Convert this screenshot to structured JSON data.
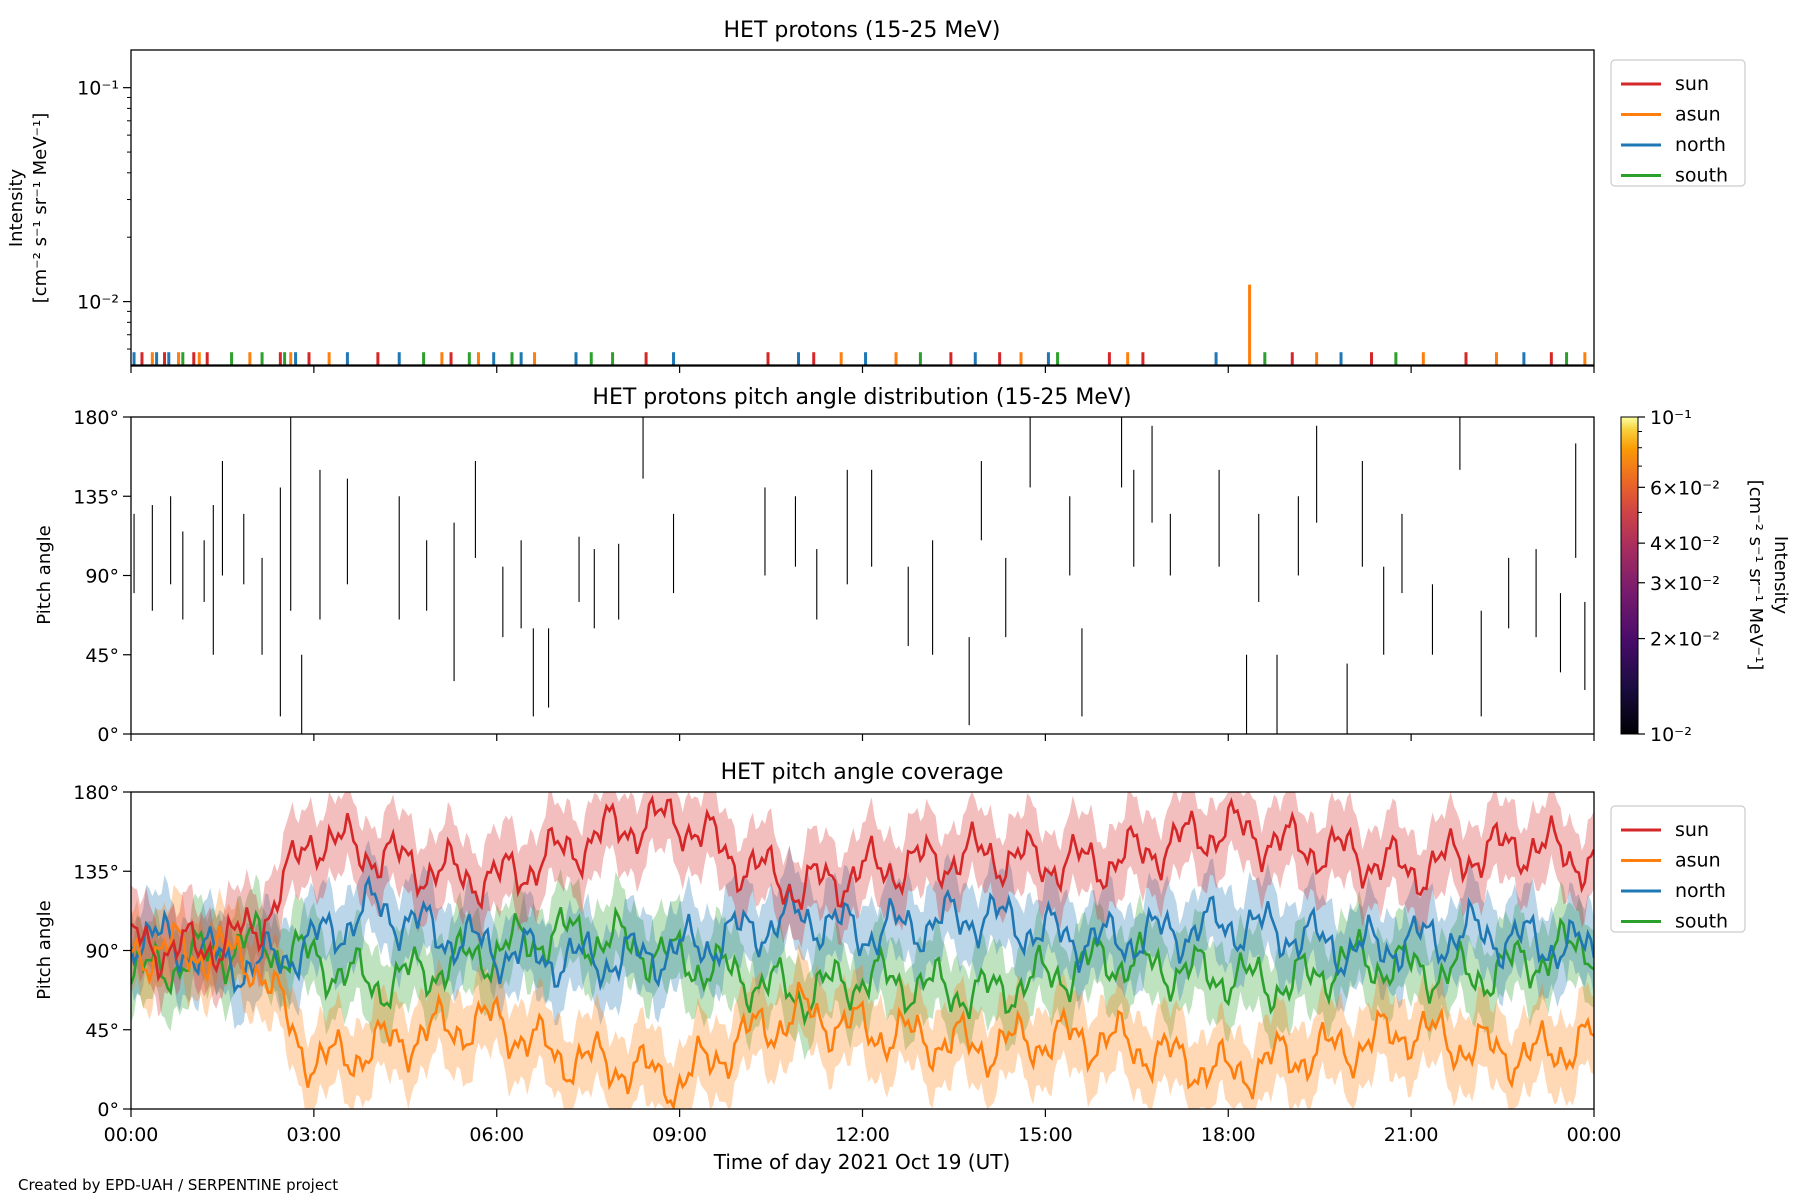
{
  "footer": "Created by EPD-UAH / SERPENTINE project",
  "colors": {
    "sun": "#d62728",
    "asun": "#ff7f0e",
    "north": "#1f77b4",
    "south": "#2ca02c"
  },
  "chart_data": [
    {
      "type": "bar",
      "title": "HET protons (15-25 MeV)",
      "ylabel_line1": "Intensity",
      "ylabel_line2": "[cm⁻² s⁻¹ sr⁻¹ MeV⁻¹]",
      "yscale": "log",
      "ylim": [
        0.005,
        0.15
      ],
      "ytick_labels": [
        "10⁻¹",
        "10⁻²"
      ],
      "legend": [
        "sun",
        "asun",
        "north",
        "south"
      ],
      "legend_position": "outside right, top",
      "spikes": [
        {
          "t": 0.05,
          "series": "north",
          "v": 0.0058
        },
        {
          "t": 0.18,
          "series": "sun",
          "v": 0.0058
        },
        {
          "t": 0.35,
          "series": "asun",
          "v": 0.0058
        },
        {
          "t": 0.42,
          "series": "north",
          "v": 0.0058
        },
        {
          "t": 0.55,
          "series": "sun",
          "v": 0.0058
        },
        {
          "t": 0.62,
          "series": "north",
          "v": 0.0058
        },
        {
          "t": 0.78,
          "series": "asun",
          "v": 0.0058
        },
        {
          "t": 0.85,
          "series": "south",
          "v": 0.0058
        },
        {
          "t": 1.03,
          "series": "sun",
          "v": 0.0058
        },
        {
          "t": 1.12,
          "series": "asun",
          "v": 0.0058
        },
        {
          "t": 1.25,
          "series": "sun",
          "v": 0.0058
        },
        {
          "t": 1.65,
          "series": "south",
          "v": 0.0058
        },
        {
          "t": 1.95,
          "series": "asun",
          "v": 0.0058
        },
        {
          "t": 2.15,
          "series": "south",
          "v": 0.0058
        },
        {
          "t": 2.45,
          "series": "sun",
          "v": 0.0058
        },
        {
          "t": 2.52,
          "series": "south",
          "v": 0.0058
        },
        {
          "t": 2.62,
          "series": "asun",
          "v": 0.0058
        },
        {
          "t": 2.7,
          "series": "north",
          "v": 0.0058
        },
        {
          "t": 2.92,
          "series": "sun",
          "v": 0.0058
        },
        {
          "t": 3.25,
          "series": "asun",
          "v": 0.0058
        },
        {
          "t": 3.55,
          "series": "north",
          "v": 0.0058
        },
        {
          "t": 4.05,
          "series": "sun",
          "v": 0.0058
        },
        {
          "t": 4.4,
          "series": "north",
          "v": 0.0058
        },
        {
          "t": 4.8,
          "series": "south",
          "v": 0.0058
        },
        {
          "t": 5.1,
          "series": "asun",
          "v": 0.0058
        },
        {
          "t": 5.25,
          "series": "sun",
          "v": 0.0058
        },
        {
          "t": 5.55,
          "series": "south",
          "v": 0.0058
        },
        {
          "t": 5.7,
          "series": "asun",
          "v": 0.0058
        },
        {
          "t": 5.95,
          "series": "north",
          "v": 0.0058
        },
        {
          "t": 6.25,
          "series": "south",
          "v": 0.0058
        },
        {
          "t": 6.4,
          "series": "north",
          "v": 0.0058
        },
        {
          "t": 6.62,
          "series": "asun",
          "v": 0.0058
        },
        {
          "t": 7.3,
          "series": "north",
          "v": 0.0058
        },
        {
          "t": 7.55,
          "series": "south",
          "v": 0.0058
        },
        {
          "t": 7.9,
          "series": "south",
          "v": 0.0058
        },
        {
          "t": 8.45,
          "series": "sun",
          "v": 0.0058
        },
        {
          "t": 8.9,
          "series": "north",
          "v": 0.0058
        },
        {
          "t": 10.45,
          "series": "sun",
          "v": 0.0058
        },
        {
          "t": 10.95,
          "series": "north",
          "v": 0.0058
        },
        {
          "t": 11.2,
          "series": "sun",
          "v": 0.0058
        },
        {
          "t": 11.65,
          "series": "asun",
          "v": 0.0058
        },
        {
          "t": 12.05,
          "series": "north",
          "v": 0.0058
        },
        {
          "t": 12.55,
          "series": "asun",
          "v": 0.0058
        },
        {
          "t": 12.95,
          "series": "south",
          "v": 0.0058
        },
        {
          "t": 13.45,
          "series": "sun",
          "v": 0.0058
        },
        {
          "t": 13.85,
          "series": "north",
          "v": 0.0058
        },
        {
          "t": 14.25,
          "series": "sun",
          "v": 0.0058
        },
        {
          "t": 14.6,
          "series": "asun",
          "v": 0.0058
        },
        {
          "t": 15.05,
          "series": "north",
          "v": 0.0058
        },
        {
          "t": 15.2,
          "series": "south",
          "v": 0.0058
        },
        {
          "t": 16.05,
          "series": "sun",
          "v": 0.0058
        },
        {
          "t": 16.35,
          "series": "asun",
          "v": 0.0058
        },
        {
          "t": 16.6,
          "series": "sun",
          "v": 0.0058
        },
        {
          "t": 17.8,
          "series": "north",
          "v": 0.0058
        },
        {
          "t": 18.35,
          "series": "asun",
          "v": 0.012
        },
        {
          "t": 18.6,
          "series": "south",
          "v": 0.0058
        },
        {
          "t": 19.05,
          "series": "sun",
          "v": 0.0058
        },
        {
          "t": 19.45,
          "series": "asun",
          "v": 0.0058
        },
        {
          "t": 19.85,
          "series": "north",
          "v": 0.0058
        },
        {
          "t": 20.35,
          "series": "sun",
          "v": 0.0058
        },
        {
          "t": 20.75,
          "series": "south",
          "v": 0.0058
        },
        {
          "t": 21.2,
          "series": "asun",
          "v": 0.0058
        },
        {
          "t": 21.9,
          "series": "sun",
          "v": 0.0058
        },
        {
          "t": 22.4,
          "series": "asun",
          "v": 0.0058
        },
        {
          "t": 22.85,
          "series": "north",
          "v": 0.0058
        },
        {
          "t": 23.3,
          "series": "sun",
          "v": 0.0058
        },
        {
          "t": 23.55,
          "series": "south",
          "v": 0.0058
        },
        {
          "t": 23.85,
          "series": "asun",
          "v": 0.0058
        }
      ]
    },
    {
      "type": "heatmap",
      "title": "HET protons pitch angle distribution (15-25 MeV)",
      "ylabel": "Pitch angle",
      "ylim": [
        0,
        180
      ],
      "ytick_labels": [
        "0°",
        "45°",
        "90°",
        "135°",
        "180°"
      ],
      "colorbar": {
        "scale": "log",
        "range": [
          0.01,
          0.1
        ],
        "tick_labels": [
          "10⁻²",
          "2×10⁻²",
          "3×10⁻²",
          "4×10⁻²",
          "6×10⁻²",
          "10⁻¹"
        ],
        "label_line1": "Intensity",
        "label_line2": "[cm⁻² s⁻¹ sr⁻¹ MeV⁻¹]"
      },
      "segments": [
        {
          "t": 0.05,
          "lo": 80,
          "hi": 125
        },
        {
          "t": 0.35,
          "lo": 70,
          "hi": 130
        },
        {
          "t": 0.65,
          "lo": 85,
          "hi": 135
        },
        {
          "t": 0.85,
          "lo": 65,
          "hi": 115
        },
        {
          "t": 1.2,
          "lo": 75,
          "hi": 110
        },
        {
          "t": 1.35,
          "lo": 45,
          "hi": 130
        },
        {
          "t": 1.5,
          "lo": 90,
          "hi": 155
        },
        {
          "t": 1.85,
          "lo": 85,
          "hi": 125
        },
        {
          "t": 2.15,
          "lo": 45,
          "hi": 100
        },
        {
          "t": 2.45,
          "lo": 10,
          "hi": 140
        },
        {
          "t": 2.62,
          "lo": 70,
          "hi": 180
        },
        {
          "t": 2.8,
          "lo": 0,
          "hi": 45
        },
        {
          "t": 3.1,
          "lo": 65,
          "hi": 150
        },
        {
          "t": 3.55,
          "lo": 85,
          "hi": 145
        },
        {
          "t": 4.4,
          "lo": 65,
          "hi": 135
        },
        {
          "t": 4.85,
          "lo": 70,
          "hi": 110
        },
        {
          "t": 5.3,
          "lo": 30,
          "hi": 120
        },
        {
          "t": 5.65,
          "lo": 100,
          "hi": 155
        },
        {
          "t": 6.1,
          "lo": 55,
          "hi": 95
        },
        {
          "t": 6.4,
          "lo": 60,
          "hi": 110
        },
        {
          "t": 6.6,
          "lo": 10,
          "hi": 60
        },
        {
          "t": 6.85,
          "lo": 15,
          "hi": 60
        },
        {
          "t": 7.35,
          "lo": 75,
          "hi": 112
        },
        {
          "t": 7.6,
          "lo": 60,
          "hi": 105
        },
        {
          "t": 8.0,
          "lo": 65,
          "hi": 108
        },
        {
          "t": 8.4,
          "lo": 145,
          "hi": 180
        },
        {
          "t": 8.9,
          "lo": 80,
          "hi": 125
        },
        {
          "t": 10.4,
          "lo": 90,
          "hi": 140
        },
        {
          "t": 10.9,
          "lo": 95,
          "hi": 135
        },
        {
          "t": 11.25,
          "lo": 65,
          "hi": 105
        },
        {
          "t": 11.75,
          "lo": 85,
          "hi": 150
        },
        {
          "t": 12.15,
          "lo": 95,
          "hi": 150
        },
        {
          "t": 12.75,
          "lo": 50,
          "hi": 95
        },
        {
          "t": 13.15,
          "lo": 45,
          "hi": 110
        },
        {
          "t": 13.75,
          "lo": 5,
          "hi": 55
        },
        {
          "t": 13.95,
          "lo": 110,
          "hi": 155
        },
        {
          "t": 14.35,
          "lo": 55,
          "hi": 100
        },
        {
          "t": 14.75,
          "lo": 140,
          "hi": 180
        },
        {
          "t": 15.4,
          "lo": 90,
          "hi": 135
        },
        {
          "t": 15.6,
          "lo": 10,
          "hi": 60
        },
        {
          "t": 16.25,
          "lo": 140,
          "hi": 180
        },
        {
          "t": 16.45,
          "lo": 95,
          "hi": 150
        },
        {
          "t": 16.75,
          "lo": 120,
          "hi": 175
        },
        {
          "t": 17.05,
          "lo": 90,
          "hi": 125
        },
        {
          "t": 17.85,
          "lo": 95,
          "hi": 150
        },
        {
          "t": 18.3,
          "lo": 0,
          "hi": 45
        },
        {
          "t": 18.5,
          "lo": 75,
          "hi": 125
        },
        {
          "t": 18.8,
          "lo": 0,
          "hi": 45
        },
        {
          "t": 19.15,
          "lo": 90,
          "hi": 135
        },
        {
          "t": 19.45,
          "lo": 120,
          "hi": 175
        },
        {
          "t": 19.95,
          "lo": 0,
          "hi": 40
        },
        {
          "t": 20.2,
          "lo": 95,
          "hi": 155
        },
        {
          "t": 20.55,
          "lo": 45,
          "hi": 95
        },
        {
          "t": 20.85,
          "lo": 80,
          "hi": 125
        },
        {
          "t": 21.35,
          "lo": 45,
          "hi": 85
        },
        {
          "t": 21.8,
          "lo": 150,
          "hi": 180
        },
        {
          "t": 22.15,
          "lo": 10,
          "hi": 70
        },
        {
          "t": 22.6,
          "lo": 60,
          "hi": 100
        },
        {
          "t": 23.05,
          "lo": 55,
          "hi": 105
        },
        {
          "t": 23.45,
          "lo": 35,
          "hi": 80
        },
        {
          "t": 23.7,
          "lo": 100,
          "hi": 165
        },
        {
          "t": 23.85,
          "lo": 25,
          "hi": 75
        }
      ]
    },
    {
      "type": "line",
      "title": "HET pitch angle coverage",
      "ylabel": "Pitch angle",
      "xlabel": "Time of day 2021 Oct 19 (UT)",
      "ylim": [
        0,
        180
      ],
      "xlim_hours": [
        0,
        24
      ],
      "ytick_labels": [
        "0°",
        "45°",
        "90°",
        "135°",
        "180°"
      ],
      "xtick_labels": [
        "00:00",
        "03:00",
        "06:00",
        "09:00",
        "12:00",
        "15:00",
        "18:00",
        "21:00",
        "00:00"
      ],
      "legend": [
        "sun",
        "asun",
        "north",
        "south"
      ],
      "legend_position": "outside right, top",
      "band_halfwidth_deg": 22,
      "x_hours": [
        0,
        1,
        2,
        3,
        4,
        5,
        6,
        7,
        8,
        9,
        10,
        11,
        12,
        13,
        14,
        15,
        16,
        17,
        18,
        19,
        20,
        21,
        22,
        23,
        24
      ],
      "series": [
        {
          "name": "sun",
          "values": [
            95,
            90,
            100,
            155,
            145,
            135,
            130,
            145,
            160,
            165,
            140,
            125,
            135,
            140,
            145,
            140,
            140,
            150,
            160,
            150,
            145,
            135,
            145,
            150,
            140
          ]
        },
        {
          "name": "asun",
          "values": [
            90,
            90,
            85,
            25,
            35,
            45,
            50,
            30,
            25,
            15,
            40,
            55,
            45,
            40,
            35,
            40,
            40,
            30,
            20,
            30,
            35,
            45,
            35,
            30,
            40
          ]
        },
        {
          "name": "north",
          "values": [
            100,
            90,
            80,
            95,
            115,
            100,
            90,
            85,
            85,
            90,
            100,
            110,
            100,
            105,
            110,
            100,
            95,
            100,
            105,
            100,
            90,
            95,
            100,
            95,
            90
          ]
        },
        {
          "name": "south",
          "values": [
            75,
            85,
            95,
            85,
            70,
            80,
            90,
            100,
            95,
            85,
            75,
            65,
            75,
            70,
            65,
            75,
            85,
            80,
            75,
            70,
            85,
            80,
            75,
            85,
            95
          ]
        }
      ]
    }
  ]
}
